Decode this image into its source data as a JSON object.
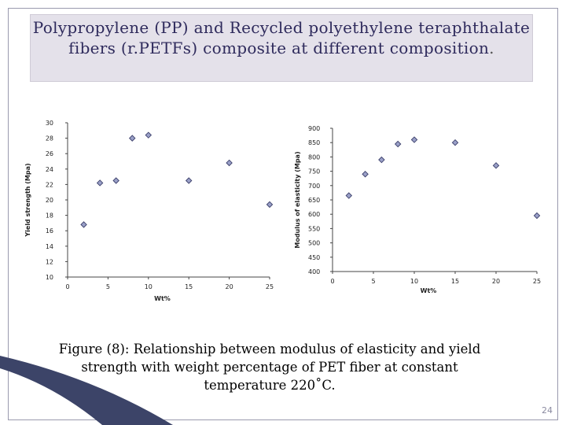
{
  "slide": {
    "title": "Polypropylene (PP) and Recycled polyethylene teraphthalate fibers (r.PETFs) composite at different composition",
    "title_period": ".",
    "caption": "Figure (8): Relationship between modulus of elasticity and yield strength with weight percentage of PET fiber at constant temperature 220˚C.",
    "page_number": "24"
  },
  "colors": {
    "title_bg": "#e4e1ea",
    "title_text": "#2e2a5c",
    "frame_border": "#9a9aae",
    "marker_fill": "#9aa0c8",
    "marker_stroke": "#3b3f6a"
  },
  "chart_data": [
    {
      "type": "scatter",
      "marker": "diamond",
      "xlabel": "Wt%",
      "ylabel": "Yield strength (Mpa)",
      "xlim": [
        0,
        25
      ],
      "ylim": [
        10,
        30
      ],
      "xticks": [
        0,
        5,
        10,
        15,
        20,
        25
      ],
      "yticks": [
        10,
        12,
        14,
        16,
        18,
        20,
        22,
        24,
        26,
        28,
        30
      ],
      "grid": false,
      "points": [
        {
          "x": 2,
          "y": 16.8
        },
        {
          "x": 4,
          "y": 22.2
        },
        {
          "x": 6,
          "y": 22.5
        },
        {
          "x": 8,
          "y": 28
        },
        {
          "x": 10,
          "y": 28.4
        },
        {
          "x": 15,
          "y": 22.5
        },
        {
          "x": 20,
          "y": 24.8
        },
        {
          "x": 25,
          "y": 19.4
        }
      ]
    },
    {
      "type": "scatter",
      "marker": "diamond",
      "xlabel": "Wt%",
      "ylabel": "Modulus of elasticity (Mpa)",
      "xlim": [
        0,
        25
      ],
      "ylim": [
        400,
        900
      ],
      "xticks": [
        0,
        5,
        10,
        15,
        20,
        25
      ],
      "yticks": [
        400,
        450,
        500,
        550,
        600,
        650,
        700,
        750,
        800,
        850,
        900
      ],
      "grid": false,
      "points": [
        {
          "x": 2,
          "y": 665
        },
        {
          "x": 4,
          "y": 740
        },
        {
          "x": 6,
          "y": 790
        },
        {
          "x": 8,
          "y": 845
        },
        {
          "x": 10,
          "y": 860
        },
        {
          "x": 15,
          "y": 850
        },
        {
          "x": 20,
          "y": 770
        },
        {
          "x": 25,
          "y": 595
        }
      ]
    }
  ]
}
